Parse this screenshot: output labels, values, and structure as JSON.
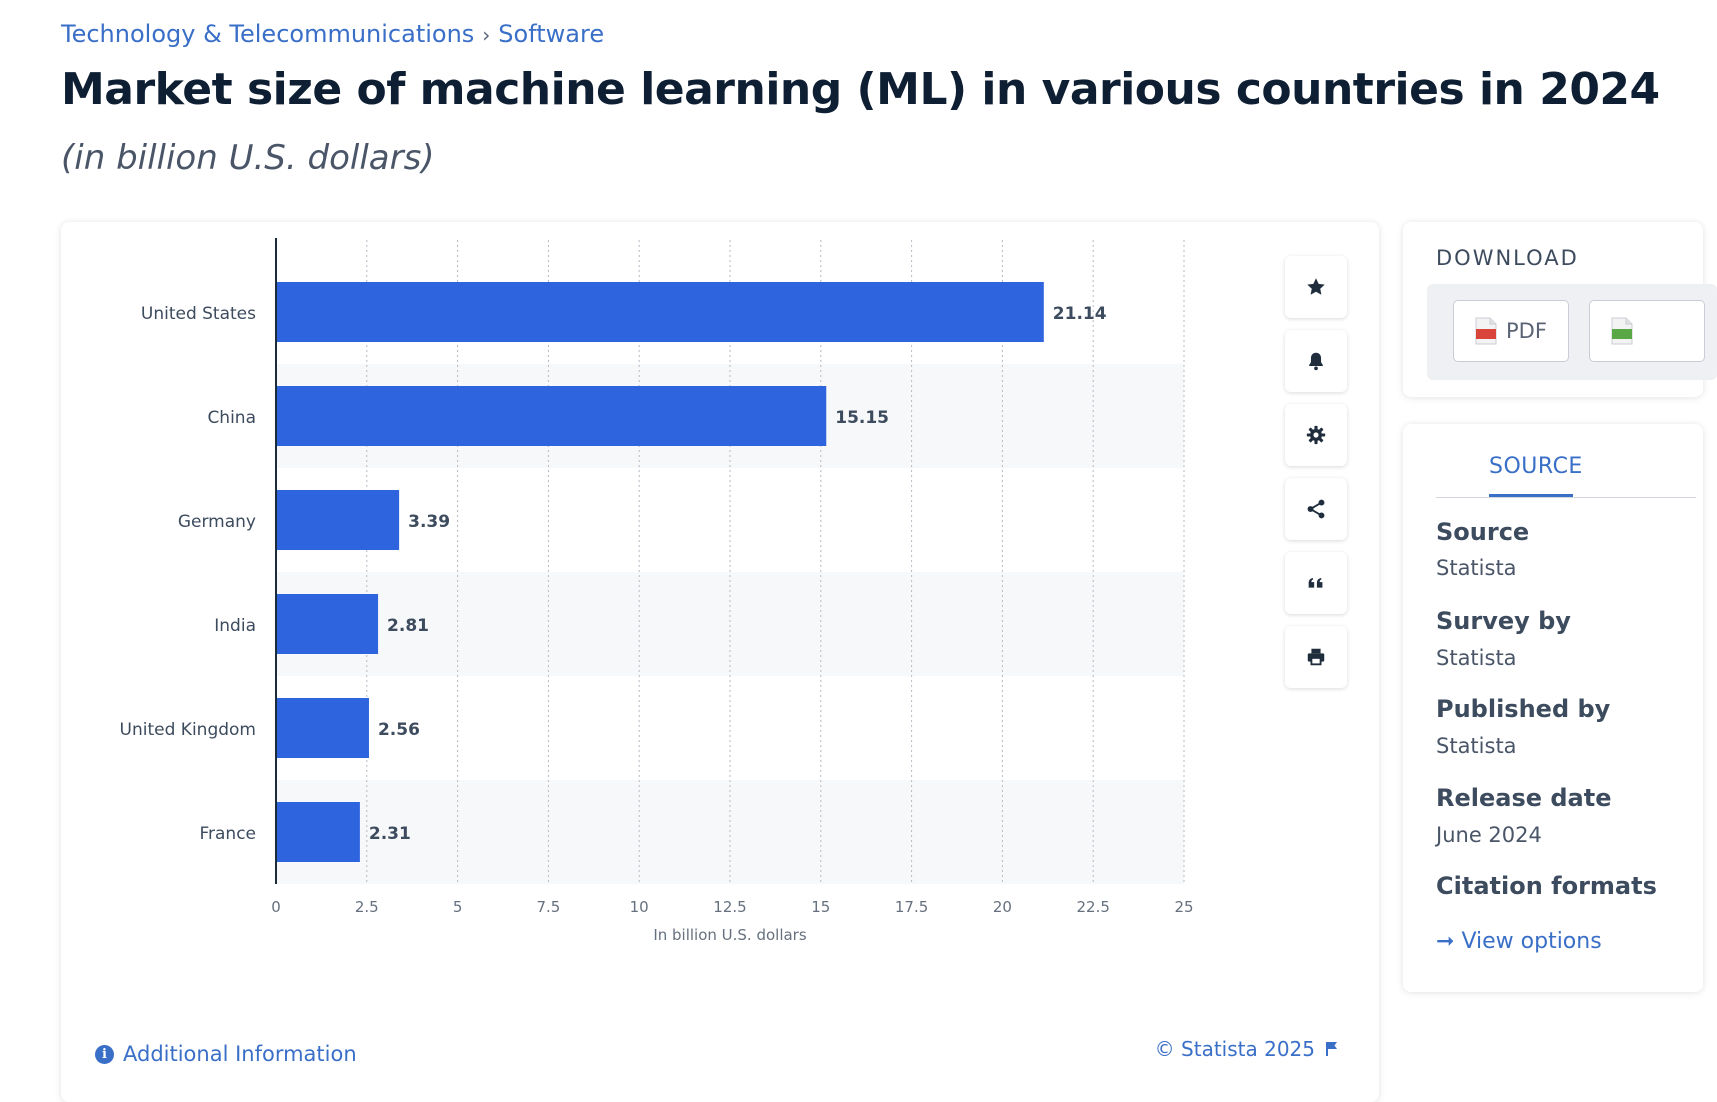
{
  "breadcrumb": {
    "category": "Technology & Telecommunications",
    "separator": "›",
    "subcategory": "Software"
  },
  "title": "Market size of machine learning (ML) in various countries in 2024",
  "subtitle": "(in billion U.S. dollars)",
  "chart_data": {
    "type": "bar",
    "orientation": "horizontal",
    "categories": [
      "United States",
      "China",
      "Germany",
      "India",
      "United Kingdom",
      "France"
    ],
    "values": [
      21.14,
      15.15,
      3.39,
      2.81,
      2.56,
      2.31
    ],
    "data_labels": [
      "21.14",
      "15.15",
      "3.39",
      "2.81",
      "2.56",
      "2.31"
    ],
    "xlabel": "In billion U.S. dollars",
    "xlim": [
      0,
      25
    ],
    "ticks": [
      0,
      2.5,
      5,
      7.5,
      10,
      12.5,
      15,
      17.5,
      20,
      22.5,
      25
    ],
    "grid": "vertical-dotted",
    "bar_color": "#2e64de",
    "legend": "none"
  },
  "tools": [
    "star-icon",
    "bell-icon",
    "gear-icon",
    "share-icon",
    "quote-icon",
    "print-icon"
  ],
  "footer": {
    "additional_info": "Additional Information",
    "copyright": "© Statista 2025"
  },
  "download": {
    "title": "DOWNLOAD",
    "pdf_label": "PDF"
  },
  "source_panel": {
    "tab": "SOURCE",
    "source_label": "Source",
    "source_value": "Statista",
    "survey_label": "Survey by",
    "survey_value": "Statista",
    "published_label": "Published by",
    "published_value": "Statista",
    "release_label": "Release date",
    "release_value": "June 2024",
    "citation_label": "Citation formats",
    "citation_link": "View options"
  },
  "colors": {
    "accent": "#3a6fc8",
    "bar": "#2e64de",
    "title": "#0f1f33"
  }
}
